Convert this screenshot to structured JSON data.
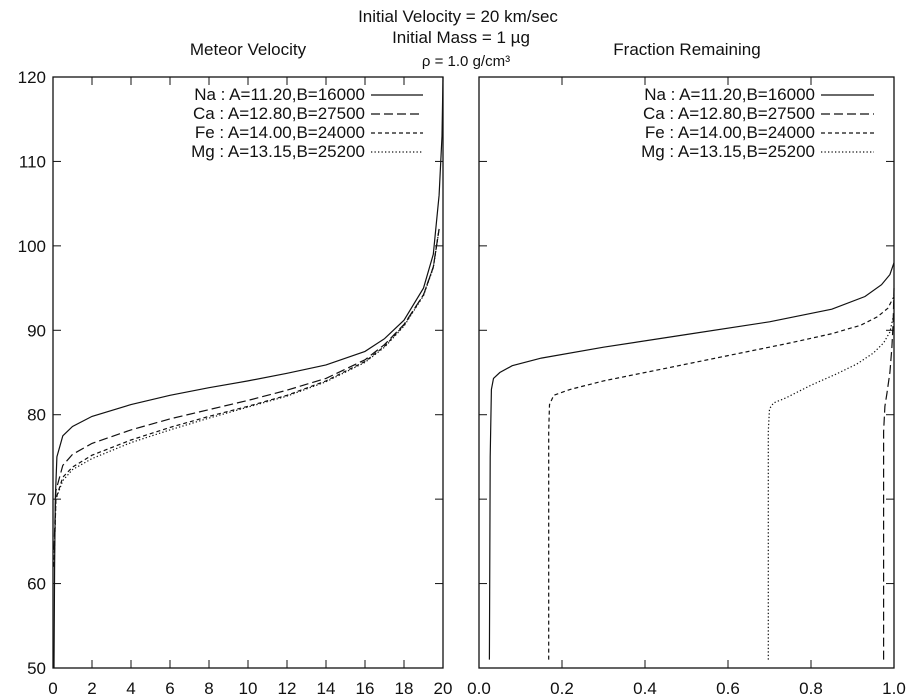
{
  "header": {
    "line1": "Initial Velocity = 20 km/sec",
    "line2": "Initial Mass = 1 µg",
    "line3": "ρ = 1.0 g/cm³"
  },
  "chart_data": [
    {
      "type": "line",
      "title": "Meteor Velocity",
      "xlabel": "",
      "ylabel": "",
      "xlim": [
        0,
        20
      ],
      "ylim": [
        50,
        120
      ],
      "x_ticks": [
        "0",
        "2",
        "4",
        "6",
        "8",
        "10",
        "12",
        "14",
        "16",
        "18",
        "20"
      ],
      "y_ticks": [
        "50",
        "60",
        "70",
        "80",
        "90",
        "100",
        "110",
        "120"
      ],
      "legend_position": "top-right",
      "series": [
        {
          "name": "Na : A=11.20,B=16000",
          "dash": "solid",
          "points": [
            [
              0.05,
              50
            ],
            [
              0.08,
              62
            ],
            [
              0.12,
              70
            ],
            [
              0.2,
              75
            ],
            [
              0.5,
              77.5
            ],
            [
              1,
              78.6
            ],
            [
              2,
              79.8
            ],
            [
              4,
              81.2
            ],
            [
              6,
              82.3
            ],
            [
              8,
              83.2
            ],
            [
              10,
              84
            ],
            [
              12,
              84.9
            ],
            [
              14,
              85.9
            ],
            [
              16,
              87.5
            ],
            [
              17,
              89
            ],
            [
              18,
              91.2
            ],
            [
              19,
              95
            ],
            [
              19.5,
              99
            ],
            [
              19.8,
              106
            ],
            [
              19.95,
              113
            ],
            [
              20,
              120
            ]
          ]
        },
        {
          "name": "Ca : A=12.80,B=27500",
          "dash": "dashed",
          "points": [
            [
              0.05,
              64
            ],
            [
              0.15,
              71
            ],
            [
              0.5,
              74
            ],
            [
              1,
              75.3
            ],
            [
              2,
              76.6
            ],
            [
              4,
              78.2
            ],
            [
              6,
              79.5
            ],
            [
              8,
              80.6
            ],
            [
              10,
              81.7
            ],
            [
              12,
              82.9
            ],
            [
              14,
              84.3
            ],
            [
              16,
              86.5
            ],
            [
              17,
              88.3
            ],
            [
              18,
              90.7
            ],
            [
              19,
              94.2
            ],
            [
              19.5,
              97.5
            ],
            [
              19.8,
              102
            ]
          ]
        },
        {
          "name": "Fe : A=14.00,B=24000",
          "dash": "short-dashed",
          "points": [
            [
              0.05,
              62
            ],
            [
              0.15,
              70
            ],
            [
              0.5,
              72.6
            ],
            [
              1,
              73.8
            ],
            [
              2,
              75.2
            ],
            [
              4,
              77
            ],
            [
              6,
              78.5
            ],
            [
              8,
              79.8
            ],
            [
              10,
              81
            ],
            [
              12,
              82.3
            ],
            [
              14,
              84
            ],
            [
              16,
              86.3
            ],
            [
              17,
              88.1
            ],
            [
              18,
              90.6
            ],
            [
              19,
              94.2
            ],
            [
              19.5,
              97.5
            ],
            [
              19.8,
              102
            ]
          ]
        },
        {
          "name": "Mg : A=13.15,B=25200",
          "dash": "dotted",
          "points": [
            [
              0.05,
              62
            ],
            [
              0.15,
              70
            ],
            [
              0.5,
              72.2
            ],
            [
              1,
              73.5
            ],
            [
              2,
              74.8
            ],
            [
              4,
              76.7
            ],
            [
              6,
              78.2
            ],
            [
              8,
              79.6
            ],
            [
              10,
              80.9
            ],
            [
              12,
              82.2
            ],
            [
              14,
              83.9
            ],
            [
              16,
              86.2
            ],
            [
              17,
              88
            ],
            [
              18,
              90.5
            ],
            [
              19,
              94.1
            ],
            [
              19.5,
              97.4
            ],
            [
              19.8,
              102
            ]
          ]
        }
      ]
    },
    {
      "type": "line",
      "title": "Fraction Remaining",
      "xlabel": "",
      "ylabel": "",
      "xlim": [
        0,
        1
      ],
      "ylim": [
        50,
        120
      ],
      "x_ticks": [
        "0.0",
        "0.2",
        "0.4",
        "0.6",
        "0.8",
        "1.0"
      ],
      "y_ticks": [],
      "legend_position": "top-right",
      "series": [
        {
          "name": "Na : A=11.20,B=16000",
          "dash": "solid",
          "points": [
            [
              0.025,
              51
            ],
            [
              0.027,
              75
            ],
            [
              0.03,
              83
            ],
            [
              0.035,
              84.3
            ],
            [
              0.05,
              85
            ],
            [
              0.08,
              85.8
            ],
            [
              0.15,
              86.7
            ],
            [
              0.3,
              88
            ],
            [
              0.5,
              89.5
            ],
            [
              0.7,
              91
            ],
            [
              0.85,
              92.5
            ],
            [
              0.93,
              94
            ],
            [
              0.97,
              95.4
            ],
            [
              0.99,
              96.6
            ],
            [
              1.0,
              98
            ]
          ]
        },
        {
          "name": "Ca : A=12.80,B=27500",
          "dash": "dashed",
          "points": [
            [
              0.975,
              51
            ],
            [
              0.975,
              78
            ],
            [
              0.978,
              81
            ],
            [
              0.983,
              82.5
            ],
            [
              0.99,
              85
            ],
            [
              0.995,
              88
            ],
            [
              0.998,
              91
            ],
            [
              1.0,
              95
            ]
          ]
        },
        {
          "name": "Fe : A=14.00,B=24000",
          "dash": "short-dashed",
          "points": [
            [
              0.168,
              51
            ],
            [
              0.168,
              78
            ],
            [
              0.17,
              81.2
            ],
            [
              0.18,
              82.3
            ],
            [
              0.22,
              83
            ],
            [
              0.3,
              84
            ],
            [
              0.45,
              85.5
            ],
            [
              0.6,
              87
            ],
            [
              0.75,
              88.5
            ],
            [
              0.85,
              89.6
            ],
            [
              0.92,
              90.6
            ],
            [
              0.96,
              91.6
            ],
            [
              0.985,
              92.6
            ],
            [
              1.0,
              94
            ]
          ]
        },
        {
          "name": "Mg : A=13.15,B=25200",
          "dash": "dotted",
          "points": [
            [
              0.697,
              51
            ],
            [
              0.697,
              78
            ],
            [
              0.7,
              80.7
            ],
            [
              0.71,
              81.4
            ],
            [
              0.74,
              82
            ],
            [
              0.8,
              83.5
            ],
            [
              0.86,
              84.8
            ],
            [
              0.91,
              86
            ],
            [
              0.95,
              87.3
            ],
            [
              0.975,
              88.5
            ],
            [
              0.99,
              89.8
            ],
            [
              1.0,
              92
            ]
          ]
        }
      ]
    }
  ]
}
